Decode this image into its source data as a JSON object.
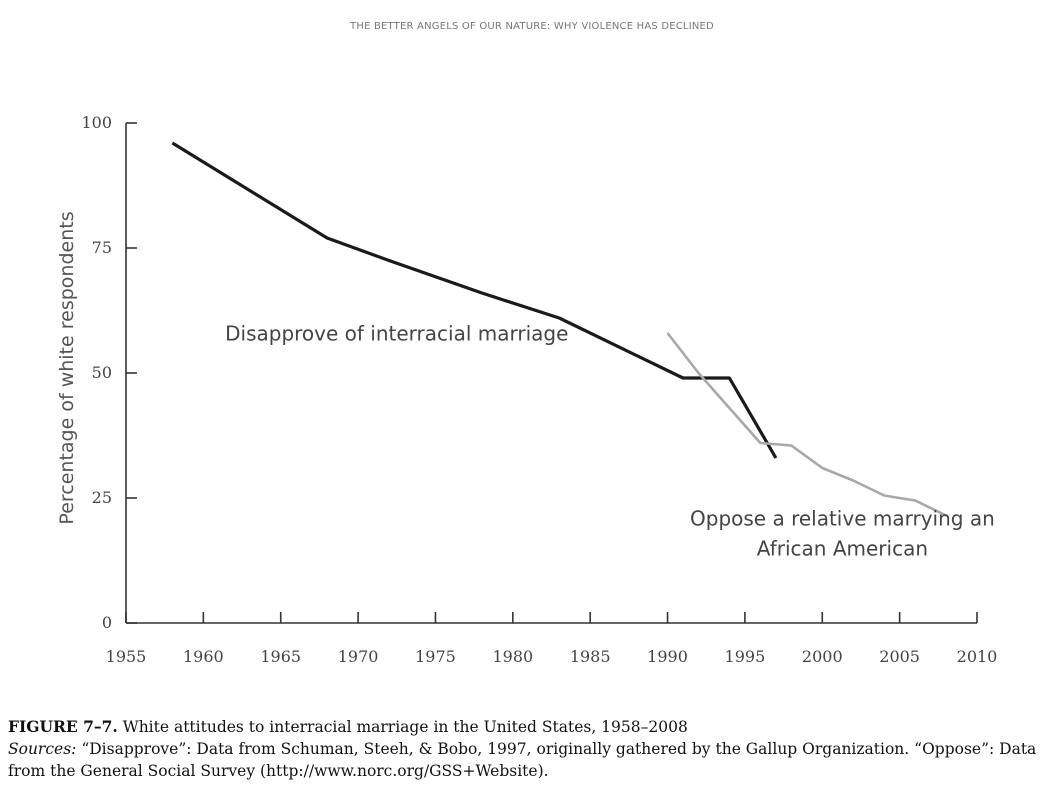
{
  "running_head": "THE BETTER ANGELS OF OUR NATURE: WHY VIOLENCE HAS DECLINED",
  "caption": {
    "figure_number": "FIGURE 7–7.",
    "title": "White attitudes to interracial marriage in the United States, 1958–2008",
    "sources_label": "Sources:",
    "sources_text": "“Disapprove”: Data from Schuman, Steeh, & Bobo, 1997, originally gathered by the Gallup Organization. “Oppose”: Data from the General Social Survey (http://www.norc.org/GSS+Website)."
  },
  "chart_data": {
    "type": "line",
    "title": "",
    "xlabel": "",
    "ylabel": "Percentage of white respondents",
    "xlim": [
      1955,
      2010
    ],
    "ylim": [
      0,
      100
    ],
    "x_ticks": [
      1955,
      1960,
      1965,
      1970,
      1975,
      1980,
      1985,
      1990,
      1995,
      2000,
      2005,
      2010
    ],
    "y_ticks": [
      0,
      25,
      50,
      75,
      100
    ],
    "grid": false,
    "series": [
      {
        "name": "Disapprove of interracial marriage",
        "color": "#1a1a1a",
        "points": [
          [
            1958,
            96
          ],
          [
            1968,
            77
          ],
          [
            1972,
            72.5
          ],
          [
            1978,
            66
          ],
          [
            1983,
            61
          ],
          [
            1991,
            49
          ],
          [
            1994,
            49
          ],
          [
            1997,
            33
          ]
        ]
      },
      {
        "name": "Oppose a relative marrying an African American",
        "color": "#a8a8a8",
        "points": [
          [
            1990,
            58
          ],
          [
            1992,
            50
          ],
          [
            1994,
            43
          ],
          [
            1996,
            36
          ],
          [
            1998,
            35.5
          ],
          [
            2000,
            31
          ],
          [
            2002,
            28.5
          ],
          [
            2004,
            25.5
          ],
          [
            2006,
            24.5
          ],
          [
            2008,
            21.5
          ]
        ]
      }
    ],
    "annotations": [
      {
        "text": "Disapprove of interracial marriage",
        "series": 0
      },
      {
        "text": "Oppose a relative marrying an",
        "series": 1,
        "line": 1
      },
      {
        "text": "African American",
        "series": 1,
        "line": 2
      }
    ]
  }
}
